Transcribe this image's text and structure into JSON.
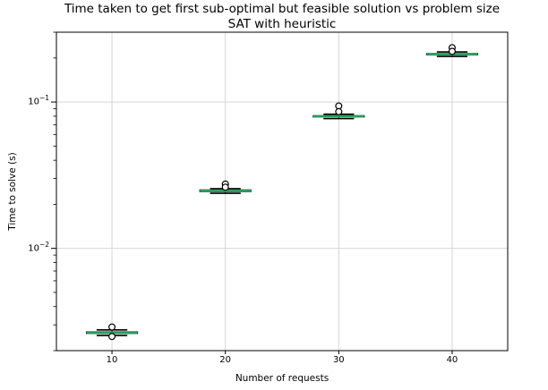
{
  "figure": {
    "title": "Time taken to get first sub-optimal but feasible solution vs problem size",
    "subtitle": "SAT with heuristic",
    "xlabel": "Number of requests",
    "ylabel": "Time to solve (s)"
  },
  "chart_data": {
    "type": "boxplot",
    "title": "Time taken to get first sub-optimal but feasible solution vs problem size",
    "subtitle": "SAT with heuristic",
    "xlabel": "Number of requests",
    "ylabel": "Time to solve (s)",
    "x_categories": [
      10,
      20,
      30,
      40
    ],
    "xlim": [
      5.1,
      44.9
    ],
    "y_scale": "log",
    "ylim": [
      0.002,
      0.3
    ],
    "grid": true,
    "legend": false,
    "y_major_ticks": [
      {
        "value": 0.1,
        "mantissa": "10",
        "exponent": "−1"
      },
      {
        "value": 0.01,
        "mantissa": "10",
        "exponent": "−2"
      }
    ],
    "box_width": 4.5,
    "cap_width": 2.7,
    "colors": {
      "median_line": "#2a9d5c",
      "box_edge": "#000000",
      "whisker": "#000000",
      "flier_edge": "#000000",
      "grid_line": "#d0d0d0",
      "spine": "#000000",
      "background": "#ffffff"
    },
    "series": [
      {
        "position": 10,
        "whislo": 0.00254,
        "q1": 0.00262,
        "med": 0.00265,
        "q3": 0.00269,
        "whishi": 0.00277,
        "fliers": [
          0.0029,
          0.0025
        ]
      },
      {
        "position": 20,
        "whislo": 0.0238,
        "q1": 0.0244,
        "med": 0.0247,
        "q3": 0.0251,
        "whishi": 0.0256,
        "fliers": [
          0.0275,
          0.0262
        ]
      },
      {
        "position": 30,
        "whislo": 0.077,
        "q1": 0.079,
        "med": 0.0798,
        "q3": 0.0807,
        "whishi": 0.0825,
        "fliers": [
          0.094,
          0.086
        ]
      },
      {
        "position": 40,
        "whislo": 0.205,
        "q1": 0.21,
        "med": 0.212,
        "q3": 0.2145,
        "whishi": 0.22,
        "fliers": [
          0.235,
          0.222
        ]
      }
    ]
  }
}
